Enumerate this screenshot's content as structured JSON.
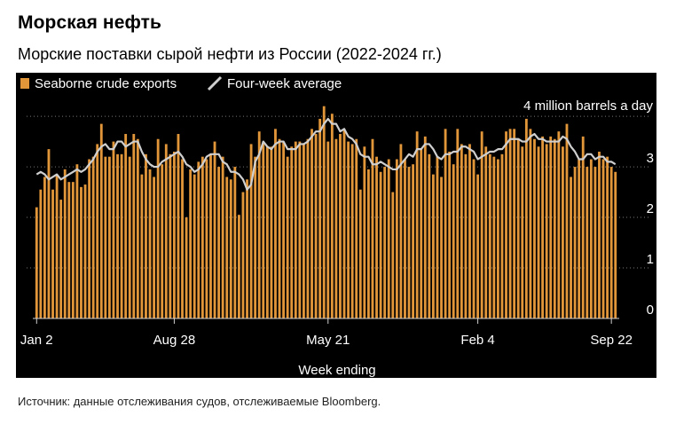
{
  "title": "Морская нефть",
  "subtitle": "Морские поставки сырой нефти из России (2022-2024 гг.)",
  "source": "Источник: данные отслеживания судов, отслеживаемые Bloomberg.",
  "colors": {
    "bar": "#e2963a",
    "line": "#cfcfcf",
    "background": "#000000",
    "grid": "#777777",
    "text": "#ffffff"
  },
  "chart_data": {
    "type": "bar",
    "xlabel": "Week ending",
    "ylabel": "",
    "unit_label": "4 million barrels a day",
    "ylim": [
      0,
      4.3
    ],
    "yticks": [
      0,
      1,
      2,
      3,
      4
    ],
    "ytick_labels": [
      "0",
      "1",
      "2",
      "3",
      ""
    ],
    "xtick_labels": [
      {
        "label": "Jan 2",
        "index": 0
      },
      {
        "label": "Aug 28",
        "index": 34
      },
      {
        "label": "May 21",
        "index": 72
      },
      {
        "label": "Feb 4",
        "index": 109
      },
      {
        "label": "Sep 22",
        "index": 142
      }
    ],
    "legend": {
      "placement": "top-left",
      "items": [
        {
          "name": "Seaborne crude exports",
          "kind": "bar"
        },
        {
          "name": "Four-week average",
          "kind": "line"
        }
      ]
    },
    "series": [
      {
        "name": "Seaborne crude exports",
        "kind": "bar",
        "values": [
          2.2,
          2.55,
          2.8,
          3.35,
          2.55,
          2.85,
          2.35,
          2.95,
          2.7,
          2.7,
          3.05,
          2.6,
          2.65,
          3.15,
          3.2,
          3.45,
          3.85,
          3.2,
          3.2,
          3.5,
          3.25,
          3.25,
          3.65,
          3.2,
          3.65,
          3.55,
          2.85,
          3.25,
          2.95,
          2.8,
          3.55,
          3.05,
          3.45,
          3.25,
          3.3,
          3.65,
          3.15,
          2.0,
          2.95,
          2.85,
          3.1,
          3.2,
          3.15,
          3.25,
          3.5,
          3.0,
          3.2,
          2.8,
          2.75,
          3.0,
          2.05,
          2.5,
          2.75,
          3.45,
          3.2,
          3.7,
          3.5,
          3.4,
          3.4,
          3.75,
          3.55,
          3.5,
          3.2,
          3.4,
          3.5,
          3.5,
          3.45,
          3.55,
          3.75,
          3.65,
          3.95,
          4.2,
          3.5,
          4.05,
          3.55,
          3.65,
          3.75,
          3.5,
          3.45,
          3.55,
          2.55,
          3.4,
          2.95,
          3.55,
          3.2,
          2.9,
          3.0,
          3.15,
          2.5,
          3.15,
          3.45,
          3.15,
          3.0,
          3.05,
          3.7,
          3.35,
          3.6,
          3.25,
          2.85,
          3.2,
          2.8,
          3.75,
          3.3,
          3.05,
          3.75,
          3.45,
          3.25,
          3.45,
          3.15,
          2.85,
          3.7,
          3.4,
          3.25,
          3.2,
          3.15,
          3.25,
          3.7,
          3.75,
          3.75,
          3.55,
          3.4,
          3.95,
          3.75,
          3.55,
          3.4,
          3.6,
          3.45,
          3.6,
          3.55,
          3.7,
          3.4,
          3.85,
          2.8,
          3.0,
          3.15,
          3.6,
          3.0,
          3.15,
          3.0,
          3.3,
          3.15,
          3.2,
          3.0,
          2.9
        ]
      },
      {
        "name": "Four-week average",
        "kind": "line",
        "values": [
          2.85,
          2.9,
          2.85,
          2.75,
          2.8,
          2.85,
          2.75,
          2.8,
          2.85,
          2.9,
          2.95,
          2.9,
          2.95,
          3.05,
          3.15,
          3.3,
          3.4,
          3.45,
          3.35,
          3.35,
          3.5,
          3.5,
          3.4,
          3.45,
          3.5,
          3.5,
          3.3,
          3.15,
          3.05,
          3.0,
          3.0,
          3.1,
          3.15,
          3.2,
          3.25,
          3.3,
          3.2,
          3.05,
          3.0,
          2.9,
          2.95,
          3.05,
          3.2,
          3.25,
          3.25,
          3.25,
          3.1,
          3.05,
          2.9,
          2.9,
          2.85,
          2.75,
          2.55,
          2.65,
          3.1,
          3.25,
          3.5,
          3.4,
          3.35,
          3.45,
          3.5,
          3.5,
          3.35,
          3.35,
          3.35,
          3.45,
          3.45,
          3.5,
          3.6,
          3.7,
          3.7,
          3.85,
          3.95,
          3.85,
          3.85,
          3.7,
          3.75,
          3.6,
          3.55,
          3.45,
          3.25,
          3.2,
          3.2,
          3.05,
          3.05,
          3.1,
          3.05,
          3.0,
          2.95,
          2.95,
          3.05,
          3.15,
          3.25,
          3.2,
          3.35,
          3.35,
          3.45,
          3.45,
          3.35,
          3.2,
          3.15,
          3.25,
          3.25,
          3.3,
          3.3,
          3.4,
          3.4,
          3.35,
          3.3,
          3.15,
          3.2,
          3.25,
          3.3,
          3.3,
          3.35,
          3.35,
          3.45,
          3.55,
          3.55,
          3.55,
          3.5,
          3.5,
          3.6,
          3.65,
          3.55,
          3.55,
          3.5,
          3.5,
          3.5,
          3.5,
          3.6,
          3.55,
          3.4,
          3.3,
          3.15,
          3.15,
          3.25,
          3.25,
          3.15,
          3.2,
          3.2,
          3.1,
          3.1,
          3.05
        ]
      }
    ]
  }
}
